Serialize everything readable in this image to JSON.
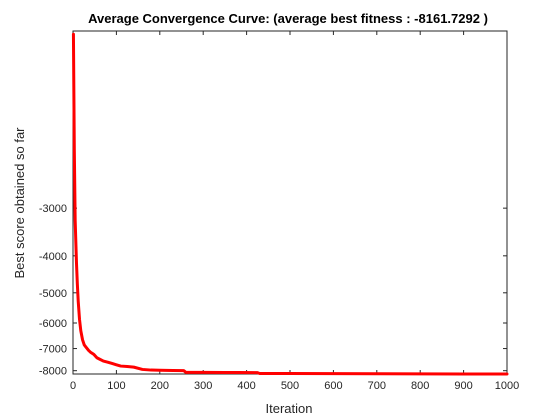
{
  "chart_data": {
    "type": "line",
    "title": "Average Convergence Curve: (average best fitness : -8161.7292 )",
    "xlabel": "Iteration",
    "ylabel": "Best score obtained so far",
    "xlim": [
      0,
      1000
    ],
    "ylim": [
      -8161.7292,
      -1030
    ],
    "y_scale": "log-magnitude (reversed)",
    "xticks": [
      0,
      100,
      200,
      300,
      400,
      500,
      600,
      700,
      800,
      900,
      1000
    ],
    "xtick_labels": [
      "0",
      "100",
      "200",
      "300",
      "400",
      "500",
      "600",
      "700",
      "800",
      "900",
      "1000"
    ],
    "yticks": [
      -3000,
      -4000,
      -5000,
      -6000,
      -7000,
      -8000
    ],
    "ytick_labels": [
      "-3000",
      "-4000",
      "-5000",
      "-6000",
      "-7000",
      "-8000"
    ],
    "grid": false,
    "legend": "none",
    "series": [
      {
        "color": "#ff0000",
        "x": [
          1,
          3,
          5,
          8,
          10,
          12,
          15,
          18,
          22,
          26,
          30,
          36,
          40,
          48,
          55,
          60,
          70,
          80,
          90,
          100,
          110,
          125,
          140,
          160,
          180,
          200,
          230,
          255,
          260,
          300,
          350,
          380,
          425,
          430,
          500,
          600,
          700,
          800,
          900,
          1000
        ],
        "y": [
          -1050,
          -2100,
          -3230,
          -4170,
          -4740,
          -5260,
          -5870,
          -6290,
          -6640,
          -6850,
          -6940,
          -7080,
          -7150,
          -7250,
          -7400,
          -7450,
          -7550,
          -7600,
          -7660,
          -7720,
          -7780,
          -7800,
          -7830,
          -7940,
          -7970,
          -7980,
          -7990,
          -7995,
          -8080,
          -8085,
          -8088,
          -8090,
          -8092,
          -8135,
          -8140,
          -8146,
          -8151,
          -8155,
          -8159,
          -8161.7292
        ]
      }
    ]
  }
}
